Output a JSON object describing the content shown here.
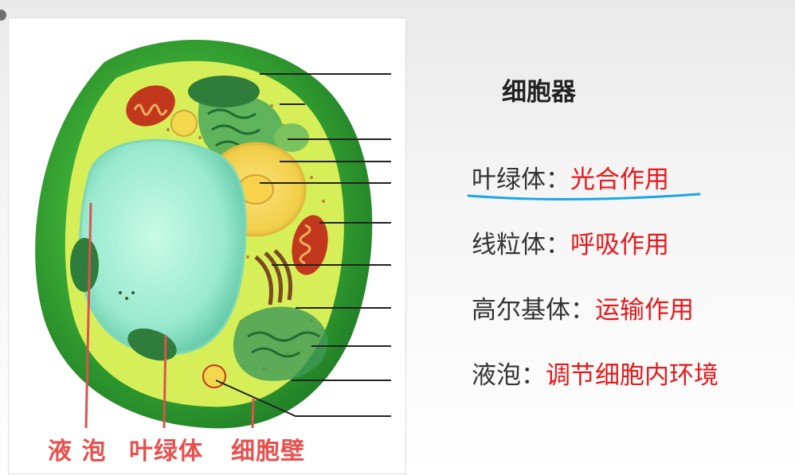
{
  "captions": {
    "vacuole": "液 泡",
    "chloroplast": "叶绿体",
    "cell_wall": "细胞壁"
  },
  "title": "细胞器",
  "functions": [
    {
      "organelle": "叶绿体",
      "separator": "：",
      "function": "光合作用"
    },
    {
      "organelle": "线粒体",
      "separator": "：",
      "function": "呼吸作用"
    },
    {
      "organelle": "高尔基体",
      "separator": "：",
      "function": "运输作用"
    },
    {
      "organelle": "液泡",
      "separator": "：",
      "function": "调节细胞内环境"
    }
  ],
  "colors": {
    "caption": "#e8504e",
    "function_text": "#e8181b",
    "underline": "#1aa5e6",
    "cell_wall": "#2d9a2d",
    "cytoplasm": "#d9ef5a",
    "vacuole": "#a8f2d8",
    "nucleus": "#f4dc5e",
    "mitochondria": "#c2381d"
  }
}
